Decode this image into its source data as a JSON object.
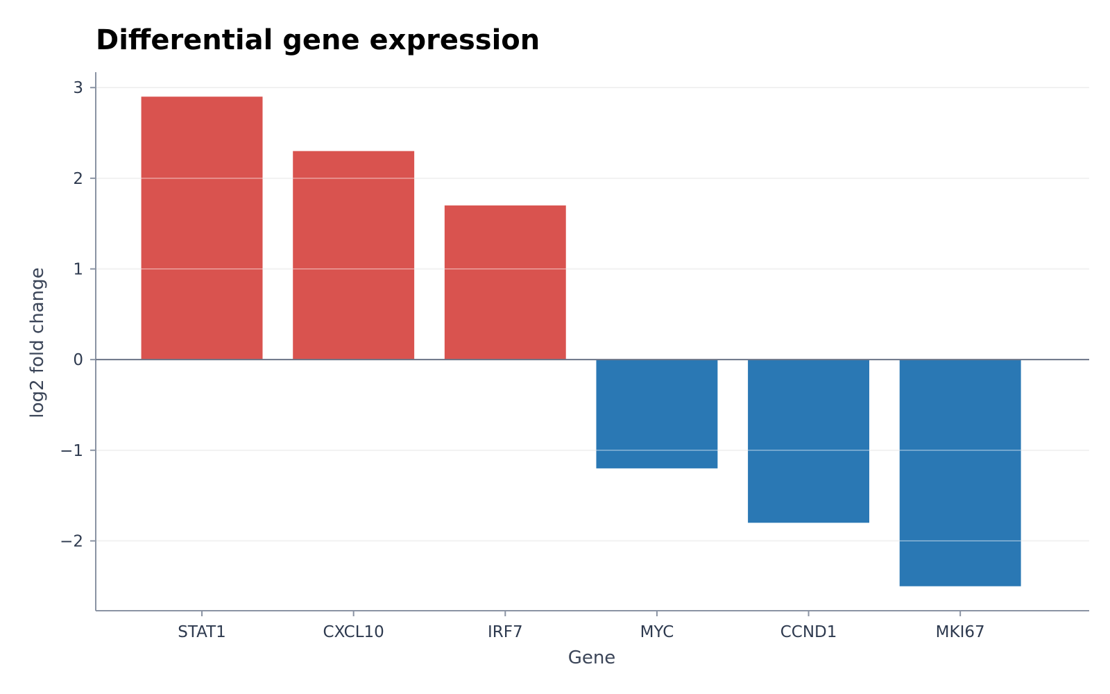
{
  "chart_data": {
    "type": "bar",
    "title": "Differential gene expression",
    "xlabel": "Gene",
    "ylabel": "log2 fold change",
    "categories": [
      "STAT1",
      "CXCL10",
      "IRF7",
      "MYC",
      "CCND1",
      "MKI67"
    ],
    "values": [
      2.9,
      2.3,
      1.7,
      -1.2,
      -1.8,
      -2.5
    ],
    "ylim": [
      -2.77,
      3.17
    ],
    "yticks": [
      3,
      2,
      1,
      0,
      -1,
      -2
    ],
    "ytick_labels": [
      "3",
      "2",
      "1",
      "0",
      "−1",
      "−2"
    ],
    "grid": true,
    "colors": {
      "positive": "#d9534f",
      "negative": "#2a78b4",
      "grid": "#e0e0e0",
      "axis": "#8a93a3",
      "zero_line": "#6b7487"
    }
  }
}
